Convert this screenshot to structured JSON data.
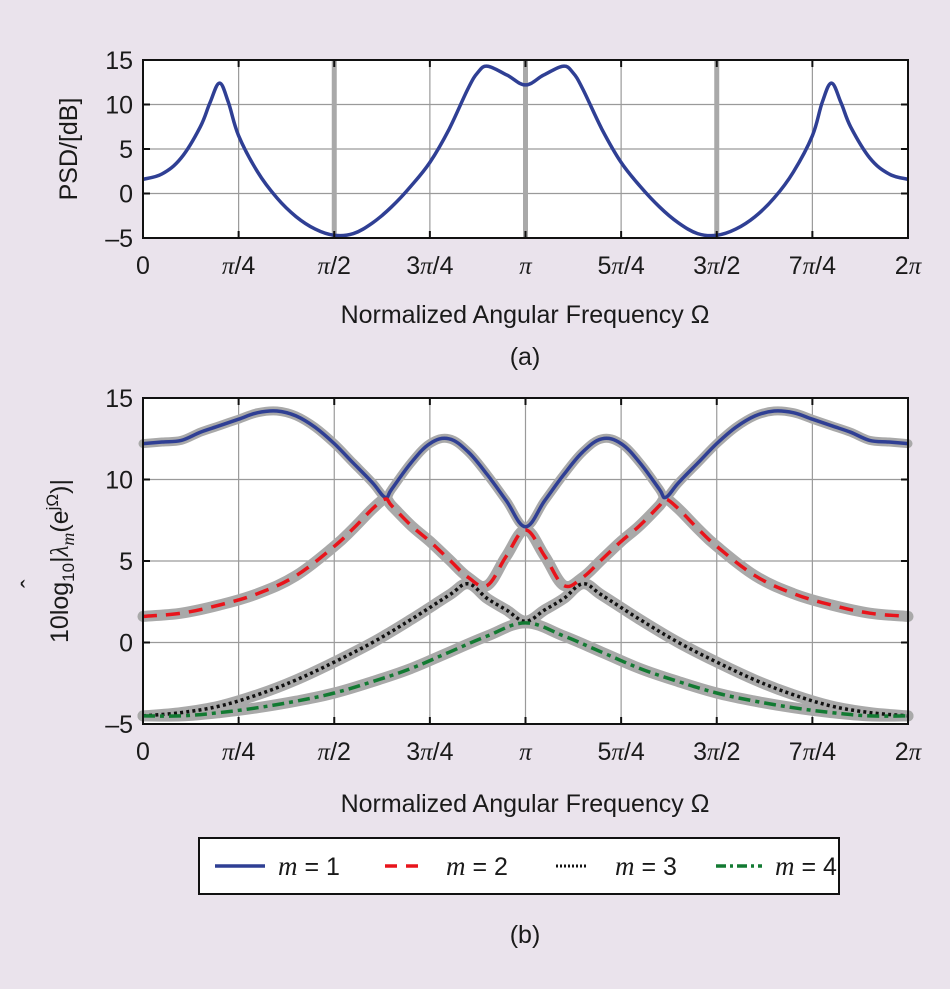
{
  "chart_data": [
    {
      "type": "line",
      "panel_caption": "(a)",
      "xlabel": "Normalized Angular Frequency Ω",
      "ylabel": "PSD/[dB]",
      "xlim": [
        0,
        6.2832
      ],
      "ylim": [
        -5,
        15
      ],
      "grid": true,
      "x_ticks": [
        0,
        0.7854,
        1.5708,
        2.3562,
        3.1416,
        3.927,
        4.7124,
        5.4978,
        6.2832
      ],
      "x_tick_labels": [
        "0",
        "π/4",
        "π/2",
        "3π/4",
        "π",
        "5π/4",
        "3π/2",
        "7π/4",
        "2π"
      ],
      "y_ticks": [
        -5,
        0,
        5,
        10,
        15
      ],
      "y_tick_labels": [
        "–5",
        "0",
        "5",
        "10",
        "15"
      ],
      "highlight_vlines": {
        "x": [
          1.5708,
          3.1416,
          4.7124
        ],
        "color": "#a9a9a9"
      },
      "series": [
        {
          "name": "PSD",
          "color": "#2f3f94",
          "style": "solid",
          "x": [
            0,
            0.157,
            0.314,
            0.471,
            0.55,
            0.628,
            0.7,
            0.785,
            0.942,
            1.1,
            1.257,
            1.414,
            1.571,
            1.728,
            1.885,
            2.042,
            2.199,
            2.356,
            2.513,
            2.67,
            2.75,
            2.83,
            2.99,
            3.1416,
            3.29,
            3.45,
            3.53,
            3.61,
            3.77,
            3.927,
            4.084,
            4.241,
            4.398,
            4.555,
            4.712,
            4.869,
            5.027,
            5.184,
            5.341,
            5.498,
            5.58,
            5.655,
            5.733,
            5.812,
            5.969,
            6.126,
            6.2832
          ],
          "y": [
            1.6,
            2.2,
            4.0,
            7.5,
            10.2,
            12.4,
            10.3,
            6.5,
            2.4,
            -0.5,
            -2.6,
            -4.0,
            -4.7,
            -4.5,
            -3.3,
            -1.5,
            0.8,
            3.5,
            7.2,
            11.8,
            13.6,
            14.3,
            13.3,
            12.2,
            13.3,
            14.3,
            13.6,
            11.8,
            7.2,
            3.5,
            0.8,
            -1.5,
            -3.3,
            -4.5,
            -4.7,
            -4.0,
            -2.6,
            -0.5,
            2.4,
            6.5,
            10.3,
            12.4,
            10.2,
            7.5,
            4.0,
            2.2,
            1.6
          ]
        }
      ]
    },
    {
      "type": "line",
      "panel_caption": "(b)",
      "xlabel": "Normalized Angular Frequency Ω",
      "ylabel": "10log10|λ̂m(e^jΩ)|",
      "ylabel_parts": {
        "prefix": "10log",
        "sub": "10",
        "bar": "|",
        "lambda": "λ",
        "hat": "ˆ",
        "m": "m",
        "open": "(e",
        "sup": "jΩ",
        "close": ")|"
      },
      "xlim": [
        0,
        6.2832
      ],
      "ylim": [
        -5,
        15
      ],
      "grid": true,
      "x_ticks": [
        0,
        0.7854,
        1.5708,
        2.3562,
        3.1416,
        3.927,
        4.7124,
        5.4978,
        6.2832
      ],
      "x_tick_labels": [
        "0",
        "π/4",
        "π/2",
        "3π/4",
        "π",
        "5π/4",
        "3π/2",
        "7π/4",
        "2π"
      ],
      "y_ticks": [
        -5,
        0,
        5,
        10,
        15
      ],
      "y_tick_labels": [
        "–5",
        "0",
        "5",
        "10",
        "15"
      ],
      "legend": {
        "placement": "bottom-outside",
        "entries": [
          "m = 1",
          "m = 2",
          "m = 3",
          "m = 4"
        ]
      },
      "shadow_color": "#a9a9a9",
      "series": [
        {
          "name": "m = 1",
          "label_var": "m",
          "label_val": "1",
          "color": "#2f3f94",
          "style": "solid",
          "x": [
            0,
            0.157,
            0.314,
            0.471,
            0.628,
            0.785,
            0.942,
            1.1,
            1.257,
            1.414,
            1.571,
            1.728,
            1.885,
            1.99,
            2.042,
            2.199,
            2.356,
            2.513,
            2.67,
            2.827,
            2.984,
            3.1416,
            3.299,
            3.456,
            3.613,
            3.77,
            3.927,
            4.084,
            4.241,
            4.293,
            4.398,
            4.555,
            4.712,
            4.869,
            5.027,
            5.184,
            5.341,
            5.498,
            5.655,
            5.812,
            5.969,
            6.126,
            6.2832
          ],
          "y": [
            12.2,
            12.3,
            12.4,
            12.9,
            13.3,
            13.7,
            14.1,
            14.2,
            13.9,
            13.2,
            12.2,
            11.0,
            9.8,
            8.9,
            9.4,
            11.0,
            12.2,
            12.5,
            11.7,
            10.3,
            8.7,
            7.1,
            8.7,
            10.3,
            11.7,
            12.5,
            12.2,
            11.0,
            9.4,
            8.9,
            9.8,
            11.0,
            12.2,
            13.2,
            13.9,
            14.2,
            14.1,
            13.7,
            13.3,
            12.9,
            12.4,
            12.3,
            12.2
          ]
        },
        {
          "name": "m = 2",
          "label_var": "m",
          "label_val": "2",
          "color": "#e8141b",
          "style": "dashed",
          "x": [
            0,
            0.314,
            0.628,
            0.942,
            1.257,
            1.571,
            1.728,
            1.885,
            1.99,
            2.042,
            2.199,
            2.356,
            2.513,
            2.67,
            2.827,
            2.984,
            3.1416,
            3.299,
            3.456,
            3.613,
            3.77,
            3.927,
            4.084,
            4.241,
            4.293,
            4.398,
            4.555,
            4.712,
            5.027,
            5.341,
            5.655,
            5.969,
            6.2832
          ],
          "y": [
            1.6,
            1.8,
            2.3,
            3.0,
            4.1,
            5.9,
            7.0,
            8.2,
            8.8,
            8.4,
            7.2,
            6.2,
            5.1,
            4.0,
            3.5,
            5.3,
            6.9,
            5.3,
            3.5,
            4.0,
            5.1,
            6.2,
            7.2,
            8.4,
            8.8,
            8.2,
            7.0,
            5.9,
            4.1,
            3.0,
            2.3,
            1.8,
            1.6
          ]
        },
        {
          "name": "m = 3",
          "label_var": "m",
          "label_val": "3",
          "color": "#111111",
          "style": "dotted",
          "x": [
            0,
            0.314,
            0.628,
            0.942,
            1.257,
            1.571,
            1.885,
            2.199,
            2.513,
            2.67,
            2.827,
            2.984,
            3.1416,
            3.299,
            3.456,
            3.613,
            3.77,
            4.084,
            4.398,
            4.712,
            5.027,
            5.341,
            5.655,
            5.969,
            6.2832
          ],
          "y": [
            -4.5,
            -4.3,
            -3.9,
            -3.2,
            -2.3,
            -1.2,
            0.0,
            1.4,
            2.9,
            3.6,
            2.7,
            2.0,
            1.3,
            2.0,
            2.7,
            3.6,
            2.9,
            1.4,
            0.0,
            -1.2,
            -2.3,
            -3.2,
            -3.9,
            -4.3,
            -4.5
          ]
        },
        {
          "name": "m = 4",
          "label_var": "m",
          "label_val": "4",
          "color": "#127a32",
          "style": "dashdot",
          "x": [
            0,
            0.314,
            0.628,
            0.942,
            1.257,
            1.571,
            1.885,
            2.199,
            2.513,
            2.827,
            3.1416,
            3.456,
            3.77,
            4.084,
            4.398,
            4.712,
            5.027,
            5.341,
            5.655,
            5.969,
            6.2832
          ],
          "y": [
            -4.5,
            -4.5,
            -4.3,
            -4.0,
            -3.6,
            -3.1,
            -2.4,
            -1.6,
            -0.6,
            0.4,
            1.2,
            0.4,
            -0.6,
            -1.6,
            -2.4,
            -3.1,
            -3.6,
            -4.0,
            -4.3,
            -4.5,
            -4.5
          ]
        }
      ]
    }
  ]
}
